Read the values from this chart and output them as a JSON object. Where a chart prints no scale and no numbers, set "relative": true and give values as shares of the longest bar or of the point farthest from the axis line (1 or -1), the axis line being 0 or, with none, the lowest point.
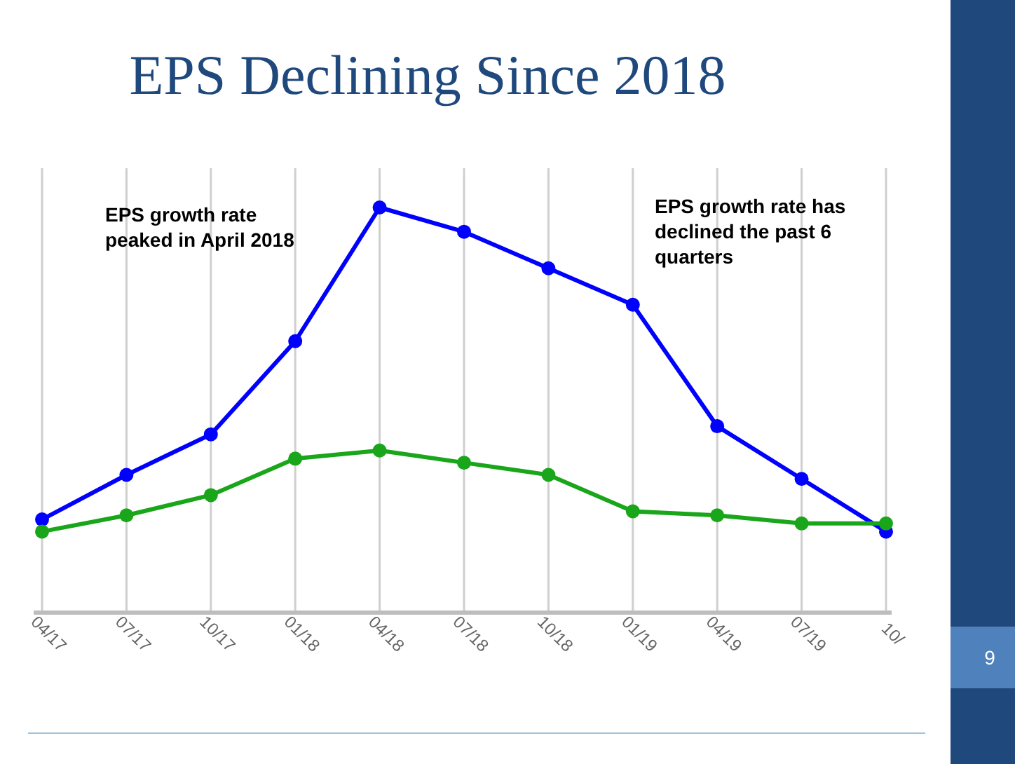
{
  "chart_data": {
    "type": "line",
    "title": "EPS Declining Since 2018",
    "categories": [
      "04/17",
      "07/17",
      "10/17",
      "01/18",
      "04/18",
      "07/18",
      "10/18",
      "01/19",
      "04/19",
      "07/19",
      "10/"
    ],
    "relative": true,
    "series": [
      {
        "color": "#0000ff",
        "values": [
          0.23,
          0.34,
          0.44,
          0.67,
          1,
          0.94,
          0.85,
          0.76,
          0.46,
          0.33,
          0.2
        ]
      },
      {
        "color": "#1aa61a",
        "values": [
          0.2,
          0.24,
          0.29,
          0.38,
          0.4,
          0.37,
          0.34,
          0.25,
          0.24,
          0.22,
          0.22
        ]
      }
    ],
    "annotations": [
      "EPS growth rate peaked in April 2018",
      "EPS growth rate has declined the past 6 quarters",
      "9"
    ],
    "grid": "x",
    "marker": "circle",
    "line_style": "solid"
  }
}
